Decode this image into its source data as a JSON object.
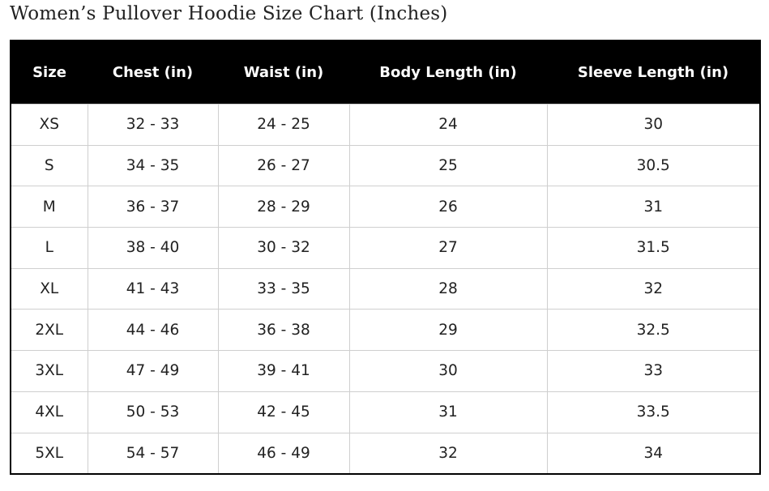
{
  "header": {
    "title": "Women’s Pullover Hoodie Size Chart (Inches)"
  },
  "table": {
    "columns": [
      "Size",
      "Chest (in)",
      "Waist (in)",
      "Body Length (in)",
      "Sleeve Length (in)"
    ],
    "rows": [
      [
        "XS",
        "32 - 33",
        "24 - 25",
        "24",
        "30"
      ],
      [
        "S",
        "34 - 35",
        "26 - 27",
        "25",
        "30.5"
      ],
      [
        "M",
        "36 - 37",
        "28 - 29",
        "26",
        "31"
      ],
      [
        "L",
        "38 - 40",
        "30 - 32",
        "27",
        "31.5"
      ],
      [
        "XL",
        "41 - 43",
        "33 - 35",
        "28",
        "32"
      ],
      [
        "2XL",
        "44 - 46",
        "36 - 38",
        "29",
        "32.5"
      ],
      [
        "3XL",
        "47 - 49",
        "39 - 41",
        "30",
        "33"
      ],
      [
        "4XL",
        "50 - 53",
        "42 - 45",
        "31",
        "33.5"
      ],
      [
        "5XL",
        "54 - 57",
        "46 - 49",
        "32",
        "34"
      ]
    ]
  }
}
